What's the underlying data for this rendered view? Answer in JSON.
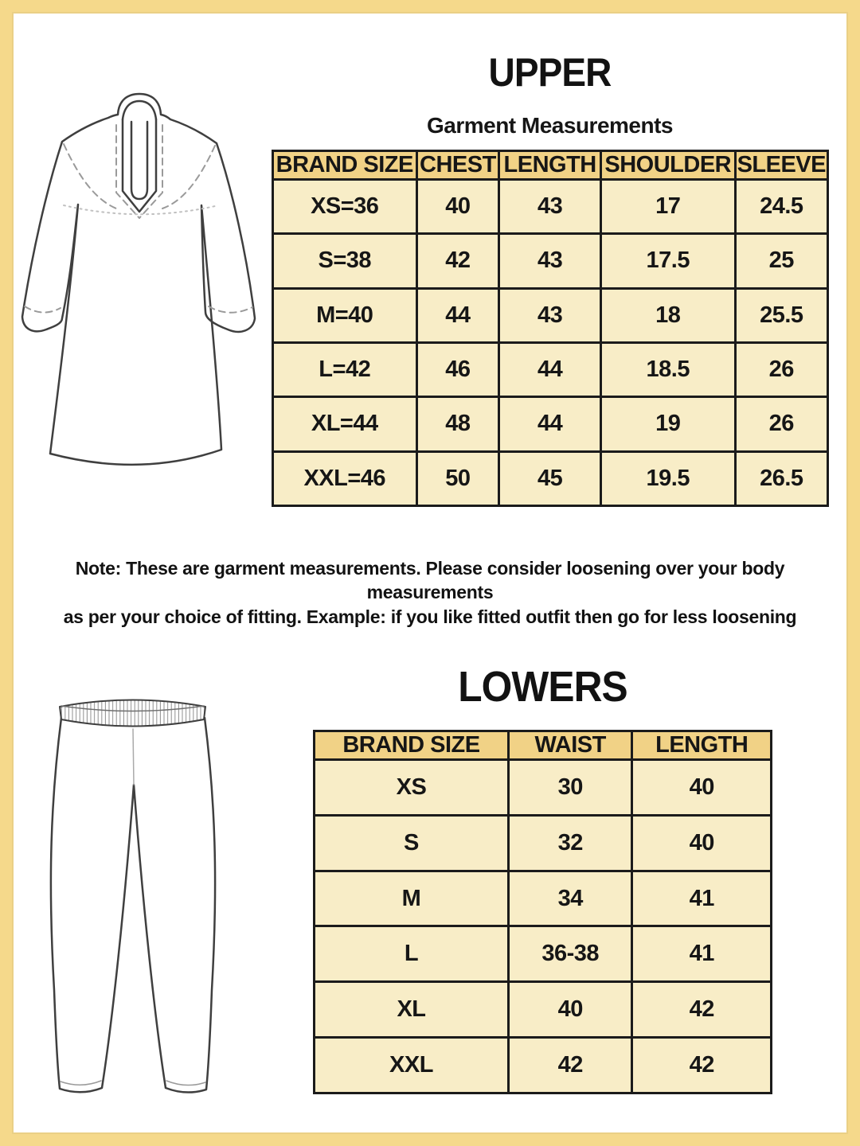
{
  "page": {
    "border_color": "#f5d98b",
    "table_header_color": "#f1d286",
    "table_cell_color": "#f8edc7",
    "grid_line_color": "#1b1b1b"
  },
  "upper_section": {
    "title": "UPPER",
    "subtitle": "Garment Measurements",
    "illustration": "kurta-line-drawing",
    "table": {
      "headers": [
        "BRAND SIZE",
        "CHEST",
        "LENGTH",
        "SHOULDER",
        "SLEEVE"
      ],
      "rows": [
        [
          "XS=36",
          "40",
          "43",
          "17",
          "24.5"
        ],
        [
          "S=38",
          "42",
          "43",
          "17.5",
          "25"
        ],
        [
          "M=40",
          "44",
          "43",
          "18",
          "25.5"
        ],
        [
          "L=42",
          "46",
          "44",
          "18.5",
          "26"
        ],
        [
          "XL=44",
          "48",
          "44",
          "19",
          "26"
        ],
        [
          "XXL=46",
          "50",
          "45",
          "19.5",
          "26.5"
        ]
      ]
    },
    "note_line1": "Note: These are garment measurements. Please consider loosening over your body measurements",
    "note_line2": "as per your choice of fitting. Example: if you like fitted outfit then go for less loosening"
  },
  "lower_section": {
    "title": "LOWERS",
    "illustration": "leggings-line-drawing",
    "table": {
      "headers": [
        "BRAND SIZE",
        "WAIST",
        "LENGTH"
      ],
      "rows": [
        [
          "XS",
          "30",
          "40"
        ],
        [
          "S",
          "32",
          "40"
        ],
        [
          "M",
          "34",
          "41"
        ],
        [
          "L",
          "36-38",
          "41"
        ],
        [
          "XL",
          "40",
          "42"
        ],
        [
          "XXL",
          "42",
          "42"
        ]
      ]
    }
  }
}
